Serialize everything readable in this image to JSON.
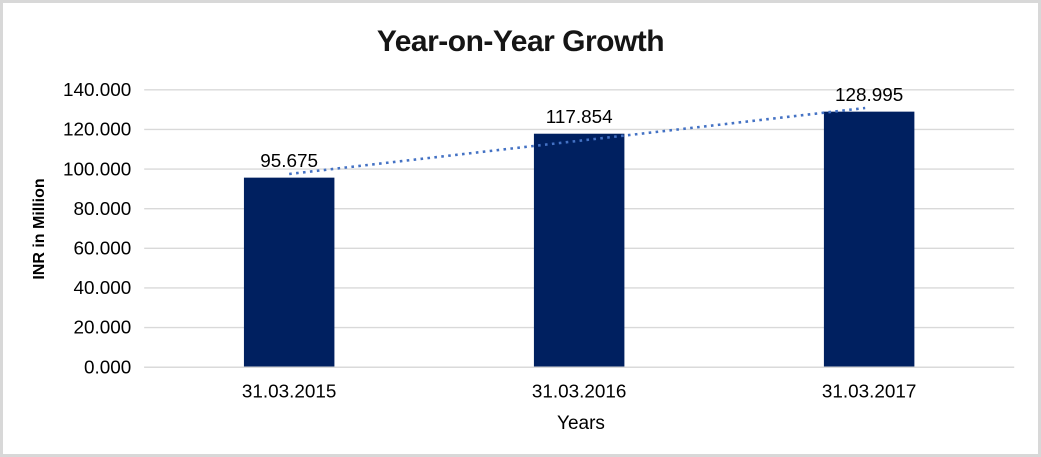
{
  "chart_data": {
    "type": "bar",
    "title": "Year-on-Year Growth",
    "xlabel": "Years",
    "ylabel": "INR in Million",
    "categories": [
      "31.03.2015",
      "31.03.2016",
      "31.03.2017"
    ],
    "values": [
      95.675,
      117.854,
      128.995
    ],
    "data_labels": [
      "95.675",
      "117.854",
      "128.995"
    ],
    "ylim": [
      0,
      140
    ],
    "ytick_step": 20,
    "ytick_labels": [
      "0.000",
      "20.000",
      "40.000",
      "60.000",
      "80.000",
      "100.000",
      "120.000",
      "140.000"
    ],
    "grid": true,
    "legend": "none",
    "trendline": {
      "type": "linear",
      "style": "dotted"
    },
    "colors": {
      "bar": "#002060",
      "trendline": "#4472C4",
      "gridline": "#d9d9d9",
      "axis_line": "#d9d9d9",
      "text": "#000000",
      "title": "#151515",
      "frame_border": "#d8d8d8"
    }
  }
}
